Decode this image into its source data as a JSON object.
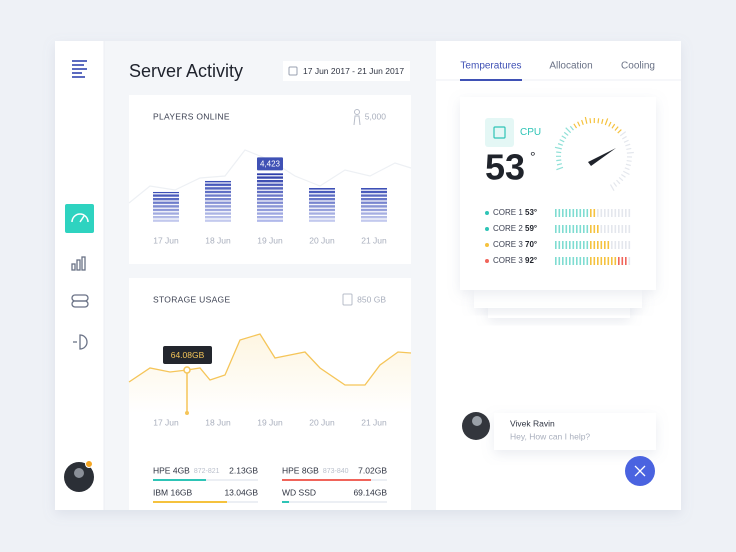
{
  "title": "Server Activity",
  "date_range": "17 Jun 2017 - 21 Jun 2017",
  "players": {
    "title": "PLAYERS ONLINE",
    "capacity": {
      "value": 5000,
      "label": "5,000"
    },
    "categories": [
      "17 Jun",
      "18 Jun",
      "19 Jun",
      "20 Jun",
      "21 Jun"
    ],
    "values": [
      2730,
      3730,
      4423,
      3090,
      3090
    ],
    "value_labels": [
      null,
      null,
      "4,423",
      null,
      null
    ]
  },
  "storage": {
    "title": "STORAGE USAGE",
    "capacity": "850 GB",
    "categories": [
      "17 Jun",
      "18 Jun",
      "19 Jun",
      "20 Jun",
      "21 Jun"
    ],
    "tooltip": "64.08GB",
    "items": [
      {
        "name": "HPE 4GB",
        "code": "872-821",
        "value": "2.13GB"
      },
      {
        "name": "HPE 8GB",
        "code": "873-840",
        "value": "7.02GB"
      },
      {
        "name": "IBM 16GB",
        "code": null,
        "value": "13.04GB"
      },
      {
        "name": "WD SSD",
        "code": null,
        "value": "69.14GB"
      }
    ]
  },
  "tabs": [
    "Temperatures",
    "Allocation",
    "Cooling"
  ],
  "cpu": {
    "label": "CPU",
    "value": 53,
    "unit": "°",
    "cores": [
      {
        "name": "CORE 1",
        "value": 53,
        "label": "53°",
        "color": "#2ec4b6"
      },
      {
        "name": "CORE 2",
        "value": 59,
        "label": "59°",
        "color": "#2ec4b6"
      },
      {
        "name": "CORE 3",
        "value": 70,
        "label": "70°",
        "color": "#f5c23e"
      },
      {
        "name": "CORE 3",
        "value": 92,
        "label": "92°",
        "color": "#f0645a"
      }
    ]
  },
  "chat": {
    "name": "Vivek Ravin",
    "message": "Hey, How can I help?"
  }
}
